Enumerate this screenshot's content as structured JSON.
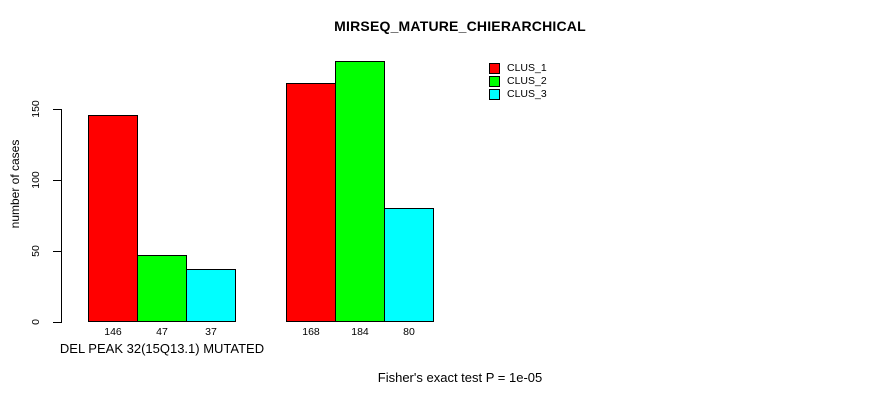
{
  "chart_data": {
    "type": "bar",
    "title": "MIRSEQ_MATURE_CHIERARCHICAL",
    "ylabel": "number of cases",
    "xlabel": "",
    "categories": [
      "DEL PEAK 32(15Q13.1) MUTATED",
      ""
    ],
    "series": [
      {
        "name": "CLUS_1",
        "color": "#FF0000",
        "values": [
          146,
          168
        ]
      },
      {
        "name": "CLUS_2",
        "color": "#00FF00",
        "values": [
          47,
          184
        ]
      },
      {
        "name": "CLUS_3",
        "color": "#00FFFF",
        "values": [
          37,
          80
        ]
      }
    ],
    "y_ticks": [
      0,
      50,
      100,
      150
    ],
    "ylim": [
      0,
      190
    ],
    "grid": false,
    "legend_position": "top-right",
    "bar_border_color": "#000000",
    "footnote": "Fisher's exact test P = 1e-05"
  }
}
